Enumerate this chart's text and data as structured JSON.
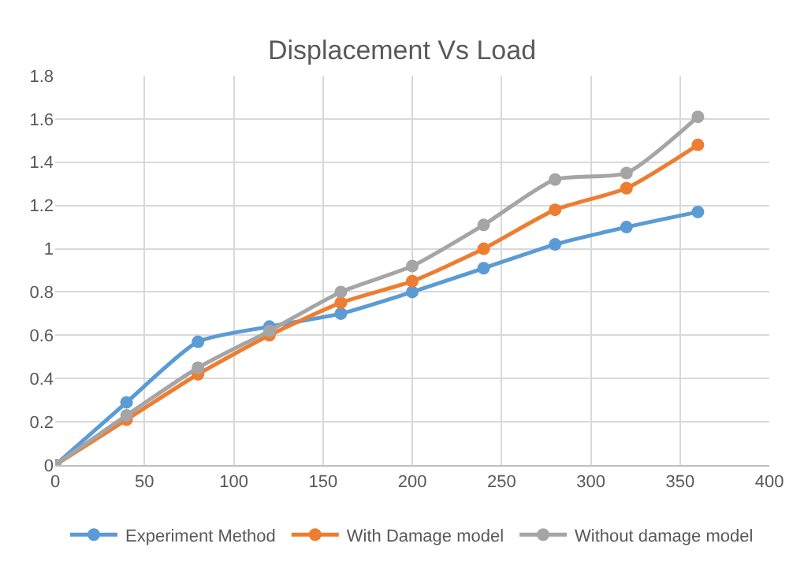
{
  "chart_data": {
    "type": "line",
    "title": "Displacement Vs Load",
    "x": [
      0,
      40,
      80,
      120,
      160,
      200,
      240,
      280,
      320,
      360
    ],
    "series": [
      {
        "name": "Experiment Method",
        "color": "#5b9bd5",
        "values": [
          0,
          0.29,
          0.57,
          0.64,
          0.7,
          0.8,
          0.91,
          1.02,
          1.1,
          1.17
        ]
      },
      {
        "name": "With Damage model",
        "color": "#ed7d31",
        "values": [
          0,
          0.21,
          0.42,
          0.6,
          0.75,
          0.85,
          1.0,
          1.18,
          1.28,
          1.48
        ]
      },
      {
        "name": "Without damage model",
        "color": "#a5a5a5",
        "values": [
          0,
          0.23,
          0.45,
          0.62,
          0.8,
          0.92,
          1.11,
          1.32,
          1.35,
          1.61
        ]
      }
    ],
    "xlim": [
      0,
      400
    ],
    "xticks": [
      0,
      50,
      100,
      150,
      200,
      250,
      300,
      350,
      400
    ],
    "ylim": [
      0,
      1.8
    ],
    "yticks": [
      0,
      0.2,
      0.4,
      0.6,
      0.8,
      1,
      1.2,
      1.4,
      1.6,
      1.8
    ],
    "grid": true,
    "legend": "bottom",
    "marker": "circle",
    "line_style": "solid"
  }
}
